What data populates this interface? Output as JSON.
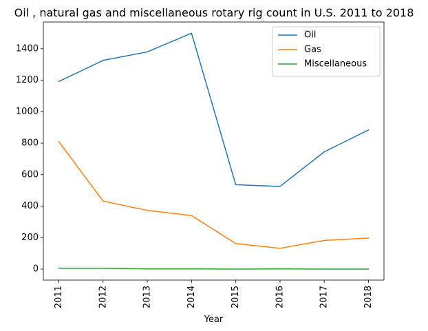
{
  "chart_data": {
    "type": "line",
    "title": "Oil , natural gas and miscellaneous rotary rig count in U.S. 2011 to 2018",
    "xlabel": "Year",
    "ylabel": "",
    "categories": [
      "2011",
      "2012",
      "2013",
      "2014",
      "2015",
      "2016",
      "2017",
      "2018"
    ],
    "ylim": [
      -70,
      1570
    ],
    "yticks": [
      0,
      200,
      400,
      600,
      800,
      1000,
      1200,
      1400
    ],
    "grid": false,
    "legend_position": "top-right",
    "series": [
      {
        "name": "Oil",
        "color": "#1f77b4",
        "values": [
          1192,
          1326,
          1380,
          1499,
          536,
          525,
          745,
          884
        ]
      },
      {
        "name": "Gas",
        "color": "#ff7f0e",
        "values": [
          809,
          432,
          373,
          340,
          162,
          132,
          182,
          197
        ]
      },
      {
        "name": "Miscellaneous",
        "color": "#2ca02c",
        "values": [
          5,
          5,
          1,
          1,
          0,
          1,
          0,
          0
        ]
      }
    ]
  }
}
